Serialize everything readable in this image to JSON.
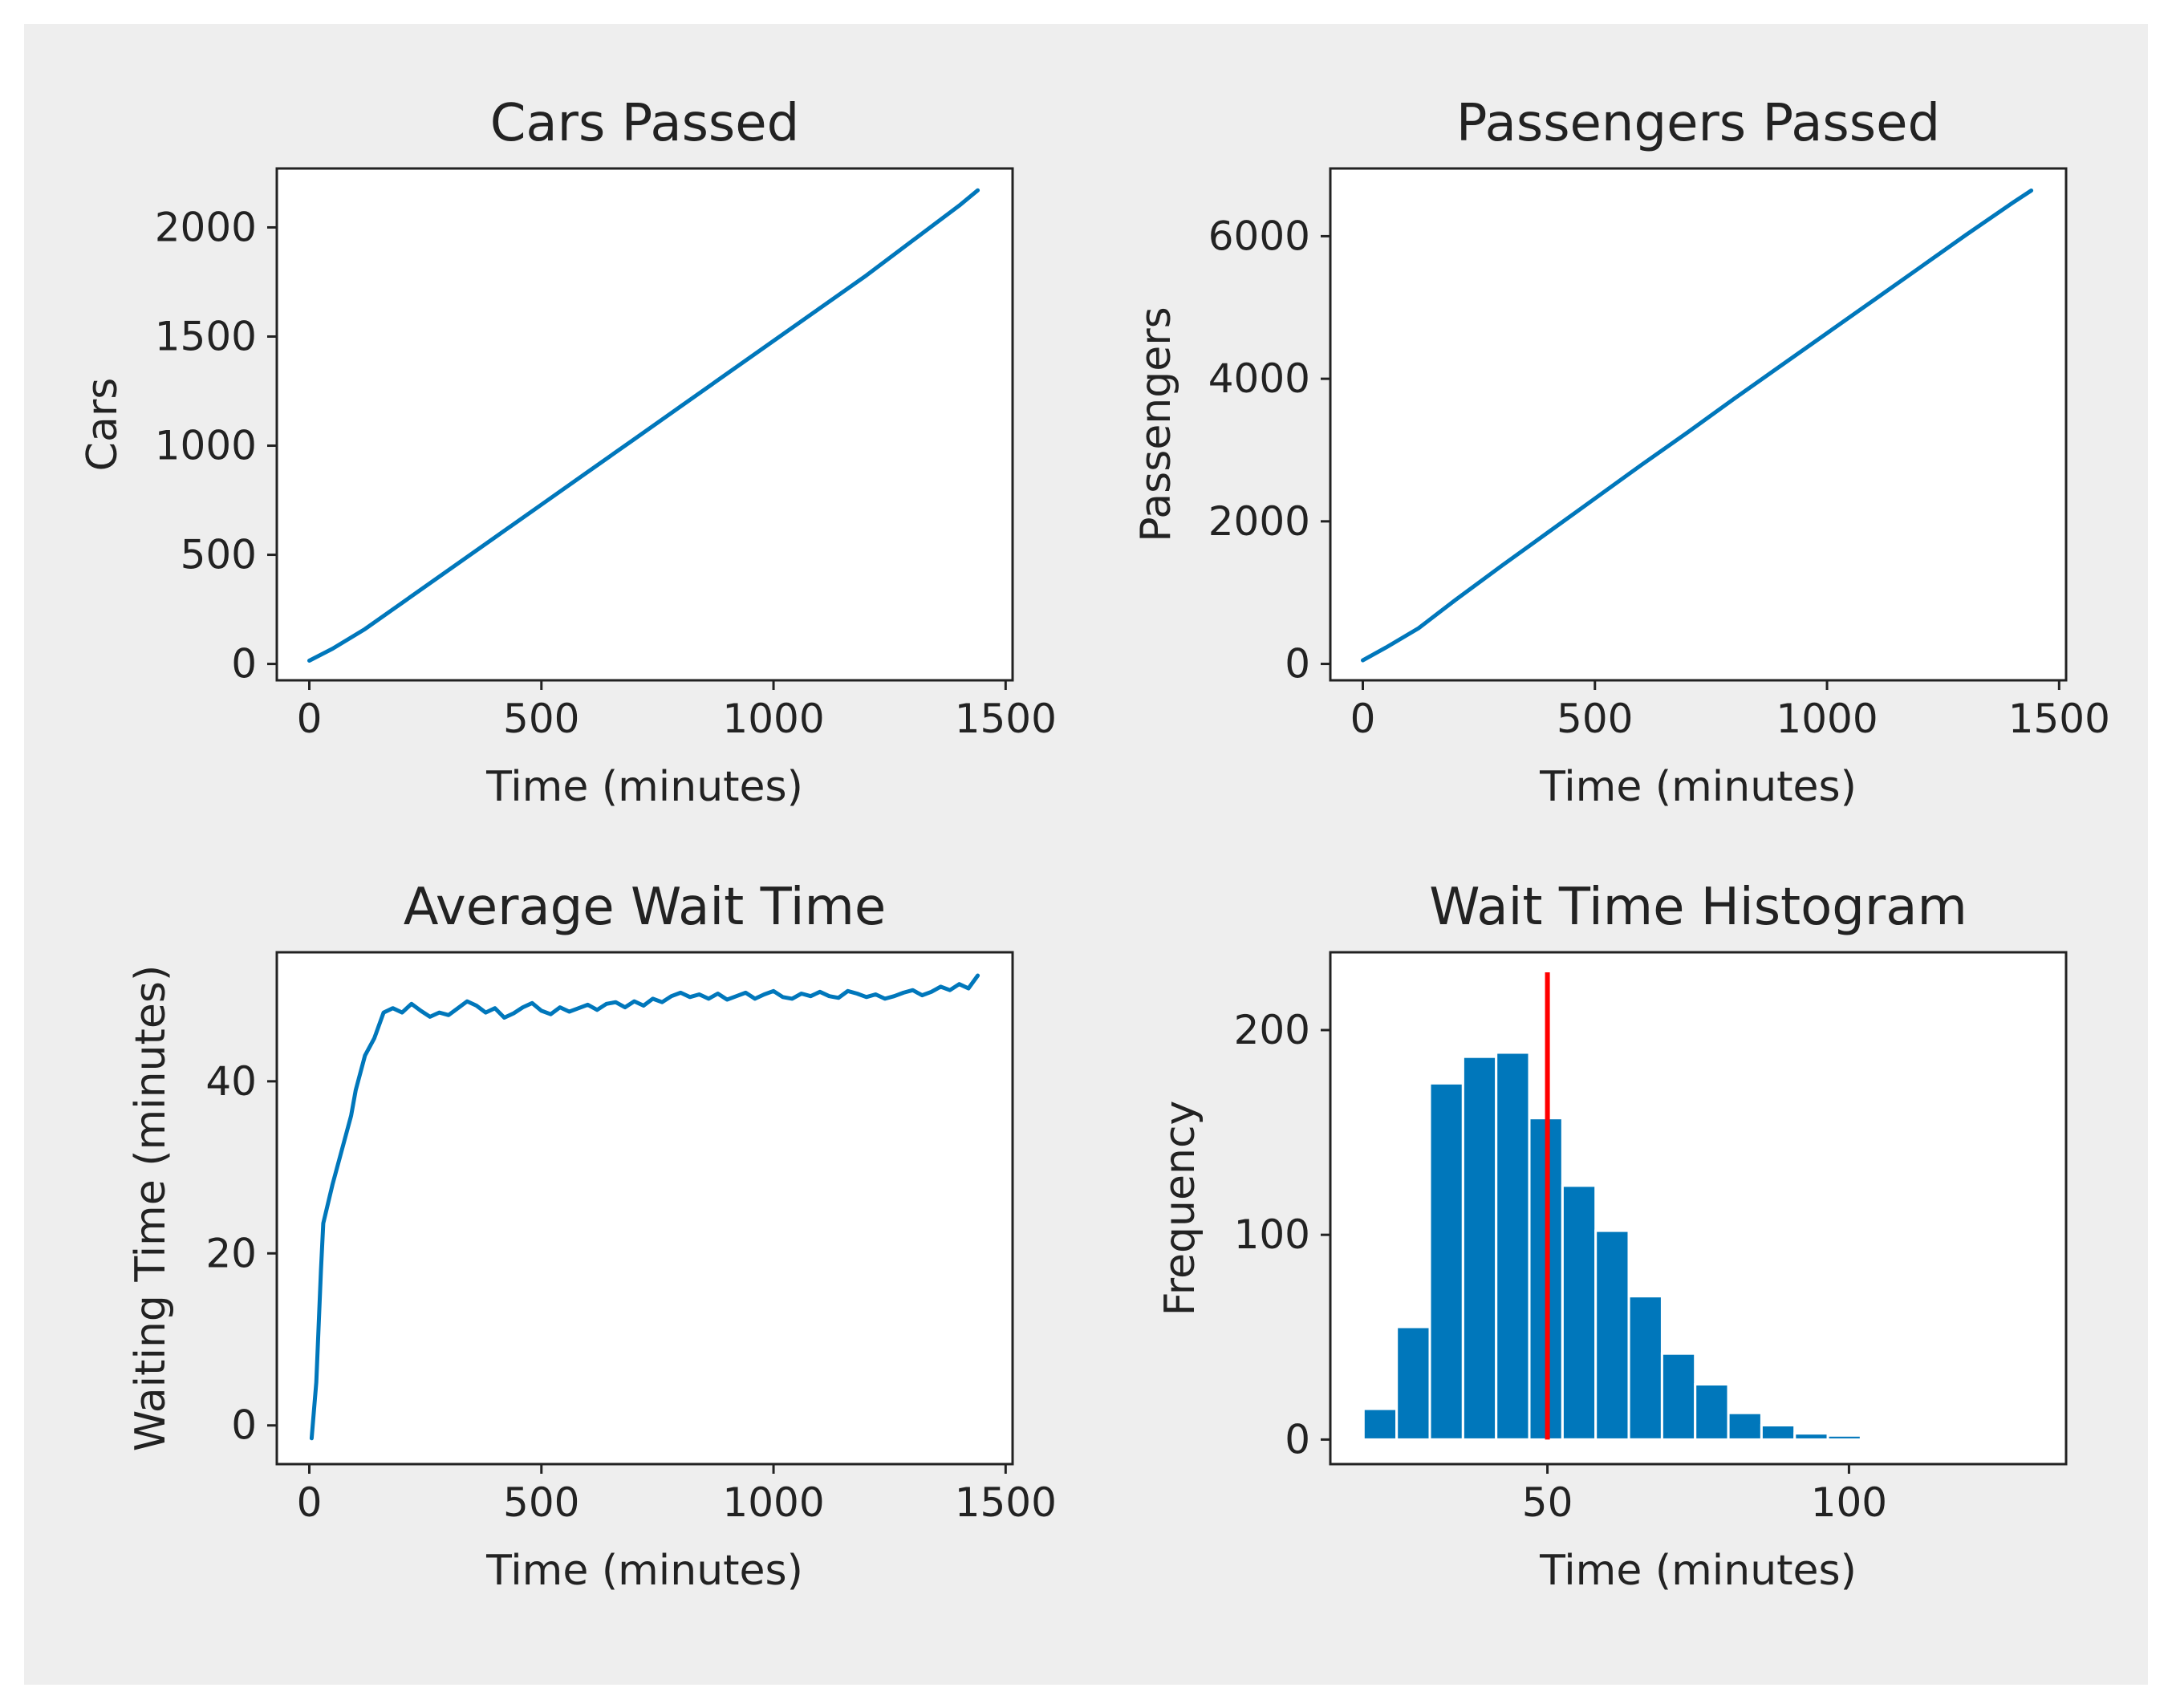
{
  "figure": {
    "background": "#eeeeee",
    "plot_background": "#ffffff",
    "line_color": "#0077bb",
    "bar_color": "#0077bb",
    "marker_color": "#ff0000"
  },
  "chart_data": [
    {
      "id": "cars",
      "type": "line",
      "title": "Cars Passed",
      "xlabel": "Time (minutes)",
      "ylabel": "Cars",
      "xlim": [
        -70,
        1515
      ],
      "ylim": [
        -75,
        2270
      ],
      "xticks": [
        0,
        500,
        1000,
        1500
      ],
      "xtick_labels": [
        "0",
        "500",
        "1000",
        "1500"
      ],
      "yticks": [
        0,
        500,
        1000,
        1500,
        2000
      ],
      "ytick_labels": [
        "0",
        "500",
        "1000",
        "1500",
        "2000"
      ],
      "series": [
        {
          "name": "cars",
          "x": [
            0,
            50,
            120,
            200,
            300,
            400,
            500,
            600,
            700,
            800,
            900,
            1000,
            1100,
            1200,
            1300,
            1400,
            1440
          ],
          "y": [
            15,
            70,
            160,
            280,
            430,
            580,
            730,
            880,
            1030,
            1180,
            1330,
            1480,
            1630,
            1780,
            1940,
            2100,
            2170
          ]
        }
      ]
    },
    {
      "id": "passengers",
      "type": "line",
      "title": "Passengers Passed",
      "xlabel": "Time (minutes)",
      "ylabel": "Passengers",
      "xlim": [
        -70,
        1515
      ],
      "ylim": [
        -230,
        6950
      ],
      "xticks": [
        0,
        500,
        1000,
        1500
      ],
      "xtick_labels": [
        "0",
        "500",
        "1000",
        "1500"
      ],
      "yticks": [
        0,
        2000,
        4000,
        6000
      ],
      "ytick_labels": [
        "0",
        "2000",
        "4000",
        "6000"
      ],
      "series": [
        {
          "name": "passengers",
          "x": [
            0,
            50,
            120,
            200,
            300,
            400,
            500,
            600,
            700,
            800,
            900,
            1000,
            1100,
            1200,
            1300,
            1400,
            1440
          ],
          "y": [
            50,
            230,
            500,
            900,
            1380,
            1850,
            2320,
            2790,
            3250,
            3720,
            4180,
            4640,
            5100,
            5560,
            6020,
            6470,
            6640
          ]
        }
      ]
    },
    {
      "id": "avg-wait",
      "type": "line",
      "title": "Average Wait Time",
      "xlabel": "Time (minutes)",
      "ylabel": "Waiting Time (minutes)",
      "xlim": [
        -70,
        1515
      ],
      "ylim": [
        -4.5,
        55
      ],
      "xticks": [
        0,
        500,
        1000,
        1500
      ],
      "xtick_labels": [
        "0",
        "500",
        "1000",
        "1500"
      ],
      "yticks": [
        0,
        20,
        40
      ],
      "ytick_labels": [
        "0",
        "20",
        "40"
      ],
      "series": [
        {
          "name": "average wait",
          "x": [
            5,
            15,
            25,
            30,
            50,
            70,
            90,
            100,
            120,
            140,
            150,
            160,
            180,
            200,
            220,
            240,
            260,
            280,
            300,
            320,
            340,
            360,
            380,
            400,
            420,
            440,
            460,
            480,
            500,
            520,
            540,
            560,
            580,
            600,
            620,
            640,
            660,
            680,
            700,
            720,
            740,
            760,
            780,
            800,
            820,
            840,
            860,
            880,
            900,
            920,
            940,
            960,
            980,
            1000,
            1020,
            1040,
            1060,
            1080,
            1100,
            1120,
            1140,
            1160,
            1180,
            1200,
            1220,
            1240,
            1260,
            1280,
            1300,
            1320,
            1340,
            1360,
            1380,
            1400,
            1420,
            1440
          ],
          "y": [
            -1.5,
            5,
            18,
            23.5,
            28,
            32,
            36,
            39,
            43,
            45,
            46.5,
            48,
            48.5,
            48,
            49,
            48.2,
            47.5,
            48,
            47.7,
            48.5,
            49.3,
            48.8,
            48,
            48.5,
            47.4,
            47.9,
            48.6,
            49.1,
            48.2,
            47.8,
            48.6,
            48.1,
            48.5,
            48.9,
            48.3,
            49,
            49.2,
            48.6,
            49.3,
            48.8,
            49.6,
            49.2,
            49.9,
            50.3,
            49.8,
            50.1,
            49.6,
            50.2,
            49.5,
            49.9,
            50.3,
            49.6,
            50.1,
            50.5,
            49.8,
            49.6,
            50.2,
            49.9,
            50.4,
            49.9,
            49.7,
            50.5,
            50.2,
            49.8,
            50.1,
            49.6,
            49.9,
            50.3,
            50.6,
            50,
            50.4,
            51,
            50.6,
            51.3,
            50.8,
            52.3
          ]
        }
      ]
    },
    {
      "id": "histogram",
      "type": "bar",
      "title": "Wait Time Histogram",
      "xlabel": "Time (minutes)",
      "ylabel": "Frequency",
      "xlim": [
        14,
        136
      ],
      "ylim": [
        -12,
        238
      ],
      "xticks": [
        50,
        100
      ],
      "xtick_labels": [
        "50",
        "100"
      ],
      "yticks": [
        0,
        100,
        200
      ],
      "ytick_labels": [
        "0",
        "100",
        "200"
      ],
      "bin_width": 5.5,
      "bins": [
        {
          "start": 19.5,
          "value": 15
        },
        {
          "start": 25.0,
          "value": 55
        },
        {
          "start": 30.5,
          "value": 174
        },
        {
          "start": 36.0,
          "value": 187
        },
        {
          "start": 41.5,
          "value": 189
        },
        {
          "start": 47.0,
          "value": 157
        },
        {
          "start": 52.5,
          "value": 124
        },
        {
          "start": 58.0,
          "value": 102
        },
        {
          "start": 63.5,
          "value": 70
        },
        {
          "start": 69.0,
          "value": 42
        },
        {
          "start": 74.5,
          "value": 27
        },
        {
          "start": 80.0,
          "value": 13
        },
        {
          "start": 85.5,
          "value": 7
        },
        {
          "start": 91.0,
          "value": 3
        },
        {
          "start": 96.5,
          "value": 2
        },
        {
          "start": 102.0,
          "value": 1
        },
        {
          "start": 107.5,
          "value": 1
        },
        {
          "start": 113.0,
          "value": 0
        },
        {
          "start": 118.5,
          "value": 1
        },
        {
          "start": 124.0,
          "value": 1
        }
      ],
      "mean_line": {
        "x": 50,
        "color": "#ff0000"
      }
    }
  ]
}
